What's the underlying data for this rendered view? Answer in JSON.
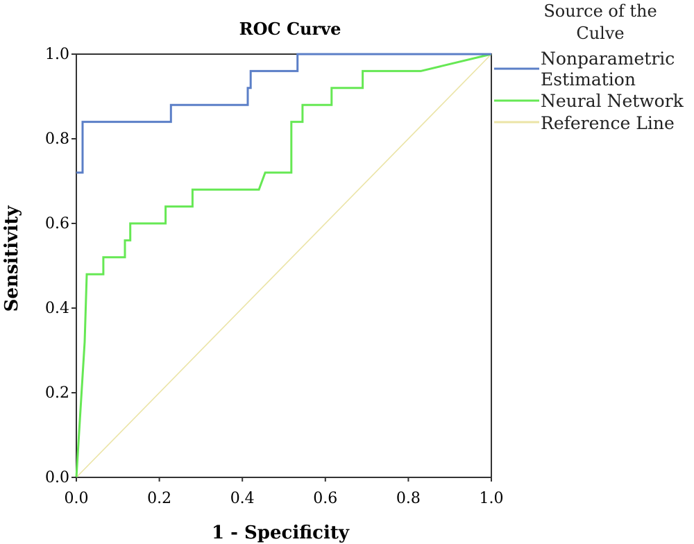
{
  "chart_data": {
    "type": "line",
    "title": "ROC Curve",
    "xlabel": "1 - Specificity",
    "ylabel": "Sensitivity",
    "xlim": [
      0,
      1
    ],
    "ylim": [
      0,
      1
    ],
    "xticks": [
      "0.0",
      "0.2",
      "0.4",
      "0.6",
      "0.8",
      "1.0"
    ],
    "yticks": [
      "0.0",
      "0.2",
      "0.4",
      "0.6",
      "0.8",
      "1.0"
    ],
    "grid": false,
    "legend": {
      "title_lines": [
        "Source of the",
        "Culve"
      ],
      "placement": "right"
    },
    "series": [
      {
        "name_lines": [
          "Nonparametric",
          "Estimation"
        ],
        "color": "#5b7fc7",
        "points": [
          [
            0.0,
            0.72
          ],
          [
            0.015,
            0.72
          ],
          [
            0.015,
            0.84
          ],
          [
            0.228,
            0.84
          ],
          [
            0.228,
            0.88
          ],
          [
            0.413,
            0.88
          ],
          [
            0.413,
            0.92
          ],
          [
            0.42,
            0.92
          ],
          [
            0.42,
            0.96
          ],
          [
            0.533,
            0.96
          ],
          [
            0.533,
            1.0
          ],
          [
            1.0,
            1.0
          ]
        ]
      },
      {
        "name": "Neural Network",
        "color": "#66e854",
        "points": [
          [
            0.0,
            0.0
          ],
          [
            0.02,
            0.32
          ],
          [
            0.025,
            0.48
          ],
          [
            0.065,
            0.48
          ],
          [
            0.065,
            0.52
          ],
          [
            0.117,
            0.52
          ],
          [
            0.117,
            0.56
          ],
          [
            0.13,
            0.56
          ],
          [
            0.13,
            0.6
          ],
          [
            0.215,
            0.6
          ],
          [
            0.215,
            0.64
          ],
          [
            0.28,
            0.64
          ],
          [
            0.28,
            0.68
          ],
          [
            0.44,
            0.68
          ],
          [
            0.455,
            0.72
          ],
          [
            0.518,
            0.72
          ],
          [
            0.518,
            0.84
          ],
          [
            0.545,
            0.84
          ],
          [
            0.545,
            0.88
          ],
          [
            0.615,
            0.88
          ],
          [
            0.615,
            0.92
          ],
          [
            0.69,
            0.92
          ],
          [
            0.69,
            0.96
          ],
          [
            0.83,
            0.96
          ],
          [
            1.0,
            1.0
          ]
        ]
      },
      {
        "name": "Reference Line",
        "color": "#ebe4a6",
        "points": [
          [
            0.0,
            0.0
          ],
          [
            1.0,
            1.0
          ]
        ]
      }
    ]
  }
}
